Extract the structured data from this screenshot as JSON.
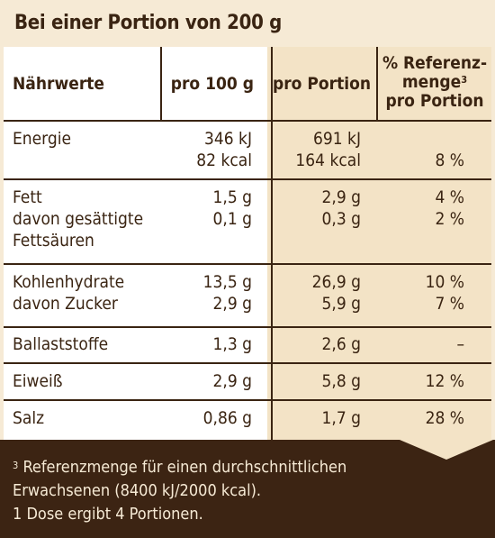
{
  "title": "Bei einer Portion von 200 g",
  "headers": {
    "nutrient": "Nährwerte",
    "per100": "pro 100 g",
    "perPortion": "pro Portion",
    "ref_line1": "% Referenz-",
    "ref_line2": "menge",
    "ref_sup": "3",
    "ref_line3": "pro Portion"
  },
  "rows": [
    {
      "n1": "Energie",
      "n2": "",
      "n3": "",
      "a1": "346 kJ",
      "a2": "82 kcal",
      "b1": "691 kJ",
      "b2": "164 kcal",
      "c1": "",
      "c2": "8 %"
    },
    {
      "n1": "Fett",
      "n2": "davon gesättigte",
      "n3": "Fettsäuren",
      "a1": "1,5 g",
      "a2": "0,1 g",
      "b1": "2,9 g",
      "b2": "0,3 g",
      "c1": "4 %",
      "c2": "2 %"
    },
    {
      "n1": "Kohlenhydrate",
      "n2": "davon Zucker",
      "n3": "",
      "a1": "13,5 g",
      "a2": "2,9 g",
      "b1": "26,9 g",
      "b2": "5,9 g",
      "c1": "10 %",
      "c2": "7 %"
    },
    {
      "n1": "Ballaststoffe",
      "n2": "",
      "n3": "",
      "a1": "1,3 g",
      "a2": "",
      "b1": "2,6 g",
      "b2": "",
      "c1": "–",
      "c2": ""
    },
    {
      "n1": "Eiweiß",
      "n2": "",
      "n3": "",
      "a1": "2,9 g",
      "a2": "",
      "b1": "5,8 g",
      "b2": "",
      "c1": "12 %",
      "c2": ""
    },
    {
      "n1": "Salz",
      "n2": "",
      "n3": "",
      "a1": "0,86 g",
      "a2": "",
      "b1": "1,7 g",
      "b2": "",
      "c1": "28 %",
      "c2": ""
    }
  ],
  "footnote": {
    "sup": "3",
    "line1": "Referenzmenge für einen durchschnittlichen",
    "line2": "Erwachsenen (8400 kJ/2000 kcal).",
    "line3": "1 Dose ergibt 4 Portionen."
  }
}
